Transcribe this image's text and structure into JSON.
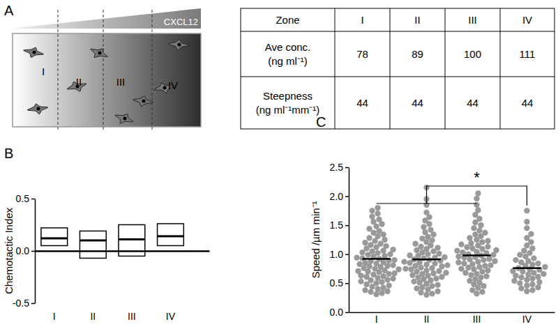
{
  "panel_a": {
    "title": "A",
    "gradient_label": "CXCL12",
    "zones": [
      "I",
      "II",
      "III",
      "IV"
    ],
    "table": {
      "header": [
        "Zone",
        "I",
        "II",
        "III",
        "IV"
      ],
      "rows": [
        {
          "label": [
            "Ave conc.",
            "(ng ml⁻¹)"
          ],
          "values": [
            78,
            89,
            100,
            111
          ]
        },
        {
          "label": [
            "Steepness",
            "(ng ml⁻¹mm⁻¹)"
          ],
          "values": [
            44,
            44,
            44,
            44
          ]
        }
      ]
    }
  },
  "chart_data": [
    {
      "type": "box",
      "title": "B",
      "y_label": "Chemotactic Index",
      "categories": [
        "I",
        "II",
        "III",
        "IV"
      ],
      "values": [
        0.12,
        0.1,
        0.11,
        0.14
      ],
      "box_low": [
        0.05,
        -0.07,
        -0.05,
        0.05
      ],
      "box_high": [
        0.22,
        0.19,
        0.25,
        0.26
      ],
      "color": "#000000",
      "ylim": [
        -0.5,
        0.5
      ],
      "yticks": [
        -0.5,
        {
          "value": 0,
          "label": "0.0"
        },
        0.5
      ]
    },
    {
      "type": "strip",
      "title": "C",
      "y_label": "Speed /µm min⁻¹",
      "categories": [
        "I",
        "II",
        "III",
        "IV"
      ],
      "color": "#999999",
      "marker": "circle",
      "points": [
        [
          0.31,
          0.33,
          0.35,
          0.36,
          0.38,
          0.4,
          0.42,
          0.44,
          0.46,
          0.48,
          0.5,
          0.52,
          0.53,
          0.55,
          0.56,
          0.58,
          0.59,
          0.61,
          0.62,
          0.63,
          0.65,
          0.66,
          0.67,
          0.69,
          0.7,
          0.71,
          0.72,
          0.74,
          0.75,
          0.76,
          0.78,
          0.79,
          0.8,
          0.81,
          0.83,
          0.84,
          0.85,
          0.86,
          0.88,
          0.89,
          0.9,
          0.92,
          0.93,
          0.94,
          0.96,
          0.97,
          0.99,
          1.0,
          1.02,
          1.03,
          1.05,
          1.06,
          1.08,
          1.1,
          1.12,
          1.14,
          1.16,
          1.18,
          1.2,
          1.23,
          1.25,
          1.28,
          1.31,
          1.34,
          1.37,
          1.4,
          1.44,
          1.48,
          1.52,
          1.56,
          1.6,
          1.65,
          1.7,
          1.75,
          1.8
        ],
        [
          0.3,
          0.32,
          0.34,
          0.36,
          0.39,
          0.41,
          0.43,
          0.45,
          0.47,
          0.49,
          0.51,
          0.53,
          0.55,
          0.57,
          0.58,
          0.6,
          0.61,
          0.63,
          0.64,
          0.66,
          0.67,
          0.68,
          0.7,
          0.71,
          0.72,
          0.74,
          0.75,
          0.76,
          0.77,
          0.79,
          0.8,
          0.81,
          0.82,
          0.84,
          0.85,
          0.86,
          0.87,
          0.89,
          0.9,
          0.91,
          0.93,
          0.94,
          0.95,
          0.97,
          0.98,
          1.0,
          1.01,
          1.03,
          1.05,
          1.07,
          1.09,
          1.11,
          1.13,
          1.15,
          1.18,
          1.21,
          1.24,
          1.27,
          1.3,
          1.34,
          1.38,
          1.42,
          1.47,
          1.52,
          1.58,
          1.64,
          1.72,
          1.85,
          1.95,
          2.15
        ],
        [
          0.32,
          0.35,
          0.38,
          0.42,
          0.45,
          0.48,
          0.51,
          0.54,
          0.57,
          0.6,
          0.62,
          0.64,
          0.66,
          0.68,
          0.7,
          0.72,
          0.74,
          0.75,
          0.77,
          0.78,
          0.8,
          0.81,
          0.83,
          0.84,
          0.86,
          0.87,
          0.88,
          0.9,
          0.91,
          0.92,
          0.94,
          0.95,
          0.96,
          0.98,
          0.99,
          1.0,
          1.02,
          1.03,
          1.04,
          1.06,
          1.07,
          1.09,
          1.1,
          1.12,
          1.13,
          1.15,
          1.17,
          1.19,
          1.21,
          1.23,
          1.25,
          1.28,
          1.31,
          1.34,
          1.37,
          1.41,
          1.45,
          1.5,
          1.55,
          1.61,
          1.68,
          1.76,
          1.85,
          1.96,
          2.05
        ],
        [
          0.36,
          0.38,
          0.41,
          0.43,
          0.46,
          0.48,
          0.5,
          0.52,
          0.54,
          0.56,
          0.58,
          0.6,
          0.61,
          0.63,
          0.65,
          0.66,
          0.68,
          0.7,
          0.71,
          0.73,
          0.74,
          0.76,
          0.78,
          0.8,
          0.82,
          0.84,
          0.86,
          0.88,
          0.9,
          0.93,
          0.96,
          0.99,
          1.02,
          1.06,
          1.1,
          1.15,
          1.21,
          1.28,
          1.35,
          1.45,
          1.56,
          1.75
        ]
      ],
      "means": [
        0.92,
        0.91,
        0.98,
        0.76
      ],
      "annotations": [
        {
          "text": "*",
          "group": [
            "I",
            "II",
            "III"
          ],
          "versus": "IV"
        }
      ],
      "ylim": [
        0,
        2.5
      ],
      "yticks": [
        {
          "value": 0,
          "label": "0.0"
        },
        0.5,
        {
          "value": 1,
          "label": "1.0"
        },
        1.5,
        {
          "value": 2,
          "label": "2.0"
        },
        2.5
      ]
    }
  ]
}
